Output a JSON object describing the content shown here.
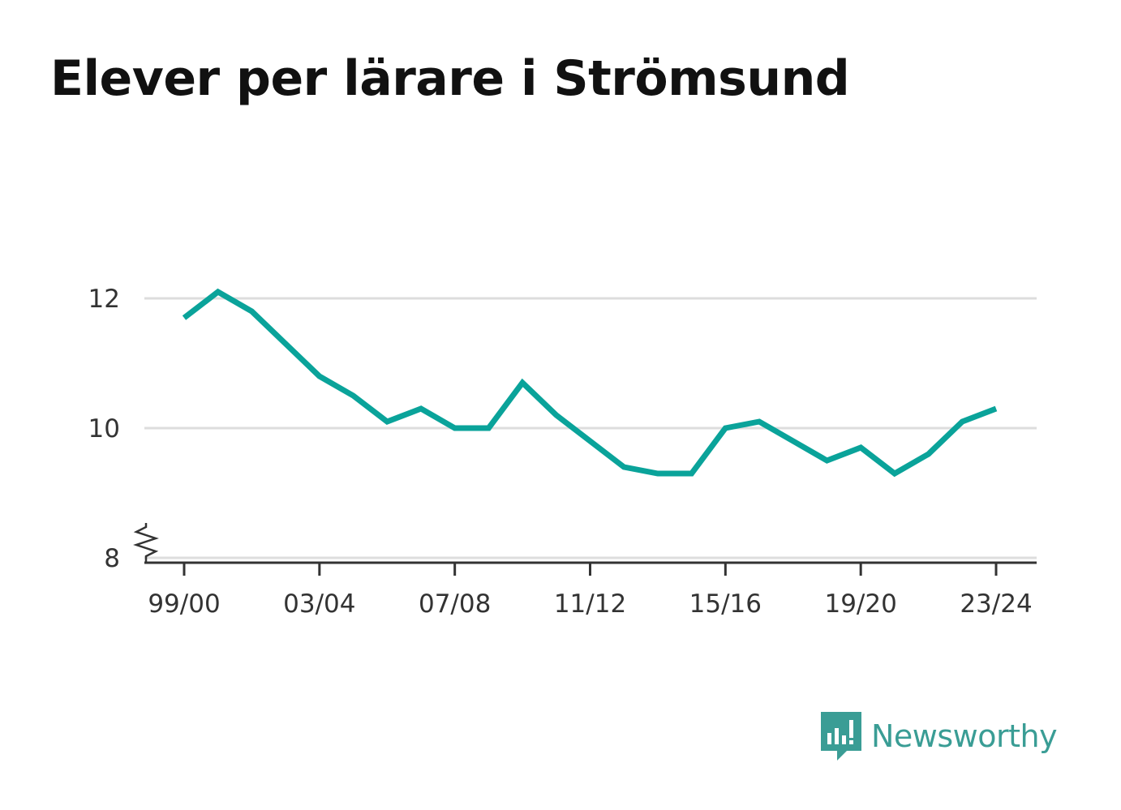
{
  "title": "Elever per lärare i Strömsund",
  "brand": {
    "name": "Newsworthy",
    "icon": "newsworthy-logo-icon",
    "color": "#3a9d95"
  },
  "chart_data": {
    "type": "line",
    "title": "Elever per lärare i Strömsund",
    "xlabel": "",
    "ylabel": "",
    "x": [
      "99/00",
      "00/01",
      "01/02",
      "02/03",
      "03/04",
      "04/05",
      "05/06",
      "06/07",
      "07/08",
      "08/09",
      "09/10",
      "10/11",
      "11/12",
      "12/13",
      "13/14",
      "14/15",
      "15/16",
      "16/17",
      "17/18",
      "18/19",
      "19/20",
      "20/21",
      "21/22",
      "22/23",
      "23/24"
    ],
    "series": [
      {
        "values": [
          11.7,
          12.1,
          11.8,
          11.3,
          10.8,
          10.5,
          10.1,
          10.3,
          10.0,
          10.0,
          10.7,
          10.2,
          9.8,
          9.4,
          9.3,
          9.3,
          10.0,
          10.1,
          9.8,
          9.5,
          9.7,
          9.3,
          9.6,
          10.1,
          10.3
        ],
        "color": "#0aa39a"
      }
    ],
    "x_tick_labels": [
      "99/00",
      "03/04",
      "07/08",
      "11/12",
      "15/16",
      "19/20",
      "23/24"
    ],
    "y_ticks": [
      8,
      10,
      12
    ],
    "ylim": [
      8,
      12.4
    ],
    "y_axis_break": true,
    "grid": true,
    "colors": {
      "line": "#0aa39a",
      "grid": "#dddddd",
      "axis": "#333333"
    }
  }
}
